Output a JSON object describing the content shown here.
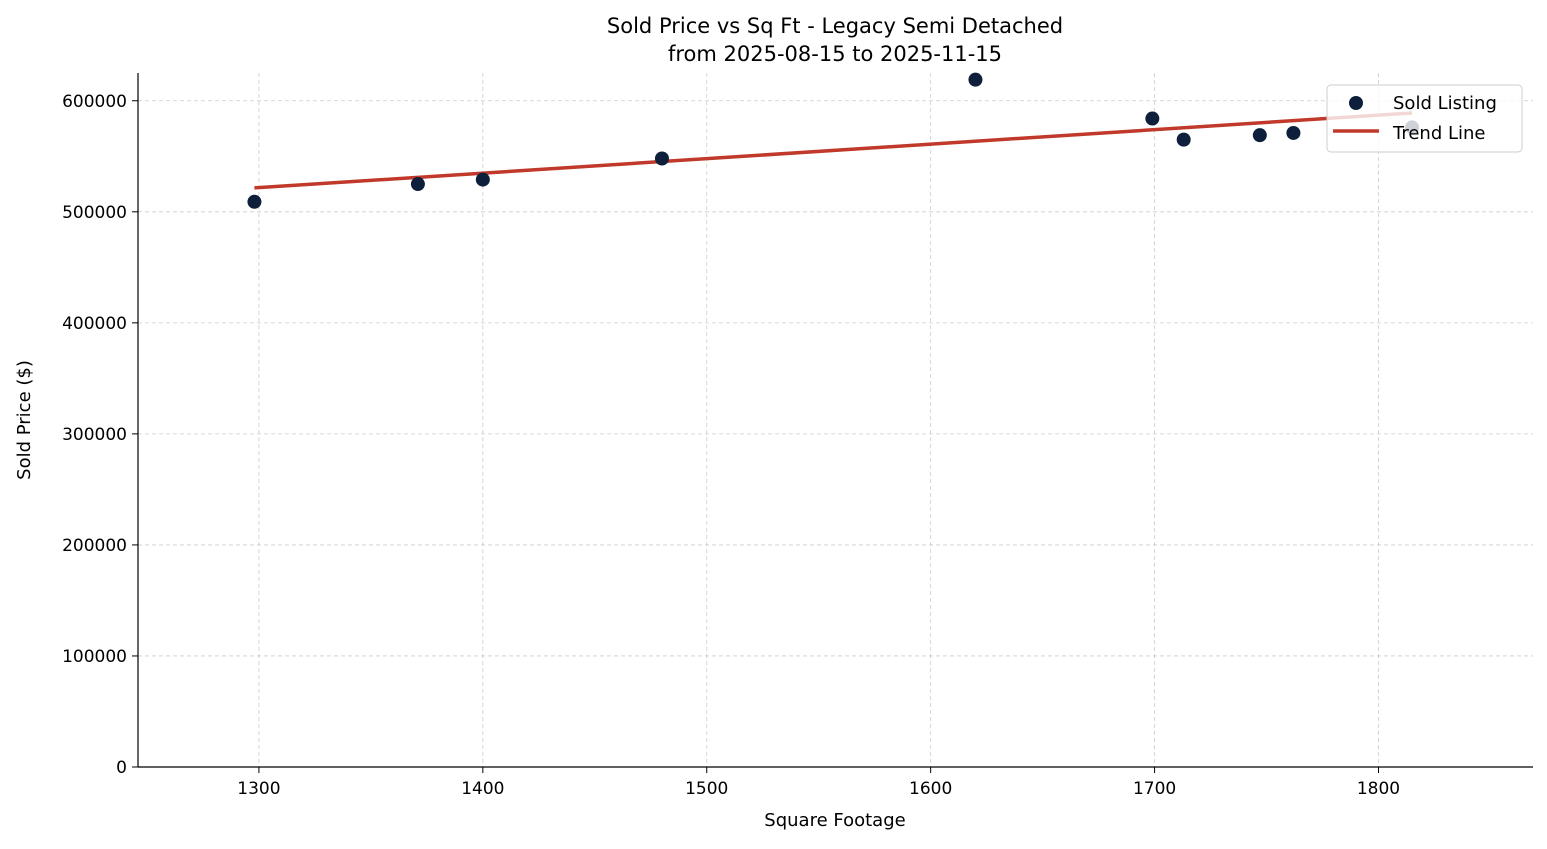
{
  "chart_data": {
    "type": "scatter",
    "title": "Sold Price vs Sq Ft - Legacy Semi Detached",
    "subtitle": "from 2025-08-15 to 2025-11-15",
    "xlabel": "Square Footage",
    "ylabel": "Sold Price ($)",
    "xlim": [
      1246,
      1869
    ],
    "ylim": [
      0,
      625000
    ],
    "xticks": [
      1300,
      1400,
      1500,
      1600,
      1700,
      1800
    ],
    "yticks": [
      0,
      100000,
      200000,
      300000,
      400000,
      500000,
      600000
    ],
    "grid": true,
    "legend_position": "top-right",
    "series": [
      {
        "name": "Sold Listing",
        "type": "scatter",
        "color": "#0d1f3a",
        "points": [
          {
            "x": 1298,
            "y": 509000
          },
          {
            "x": 1371,
            "y": 525000
          },
          {
            "x": 1400,
            "y": 529000
          },
          {
            "x": 1480,
            "y": 548000
          },
          {
            "x": 1620,
            "y": 619000
          },
          {
            "x": 1699,
            "y": 584000
          },
          {
            "x": 1713,
            "y": 565000
          },
          {
            "x": 1747,
            "y": 569000
          },
          {
            "x": 1762,
            "y": 571000
          },
          {
            "x": 1815,
            "y": 576000
          }
        ]
      },
      {
        "name": "Trend Line",
        "type": "line",
        "color": "#c0392b",
        "points": [
          {
            "x": 1298,
            "y": 521500
          },
          {
            "x": 1815,
            "y": 589000
          }
        ]
      }
    ]
  }
}
